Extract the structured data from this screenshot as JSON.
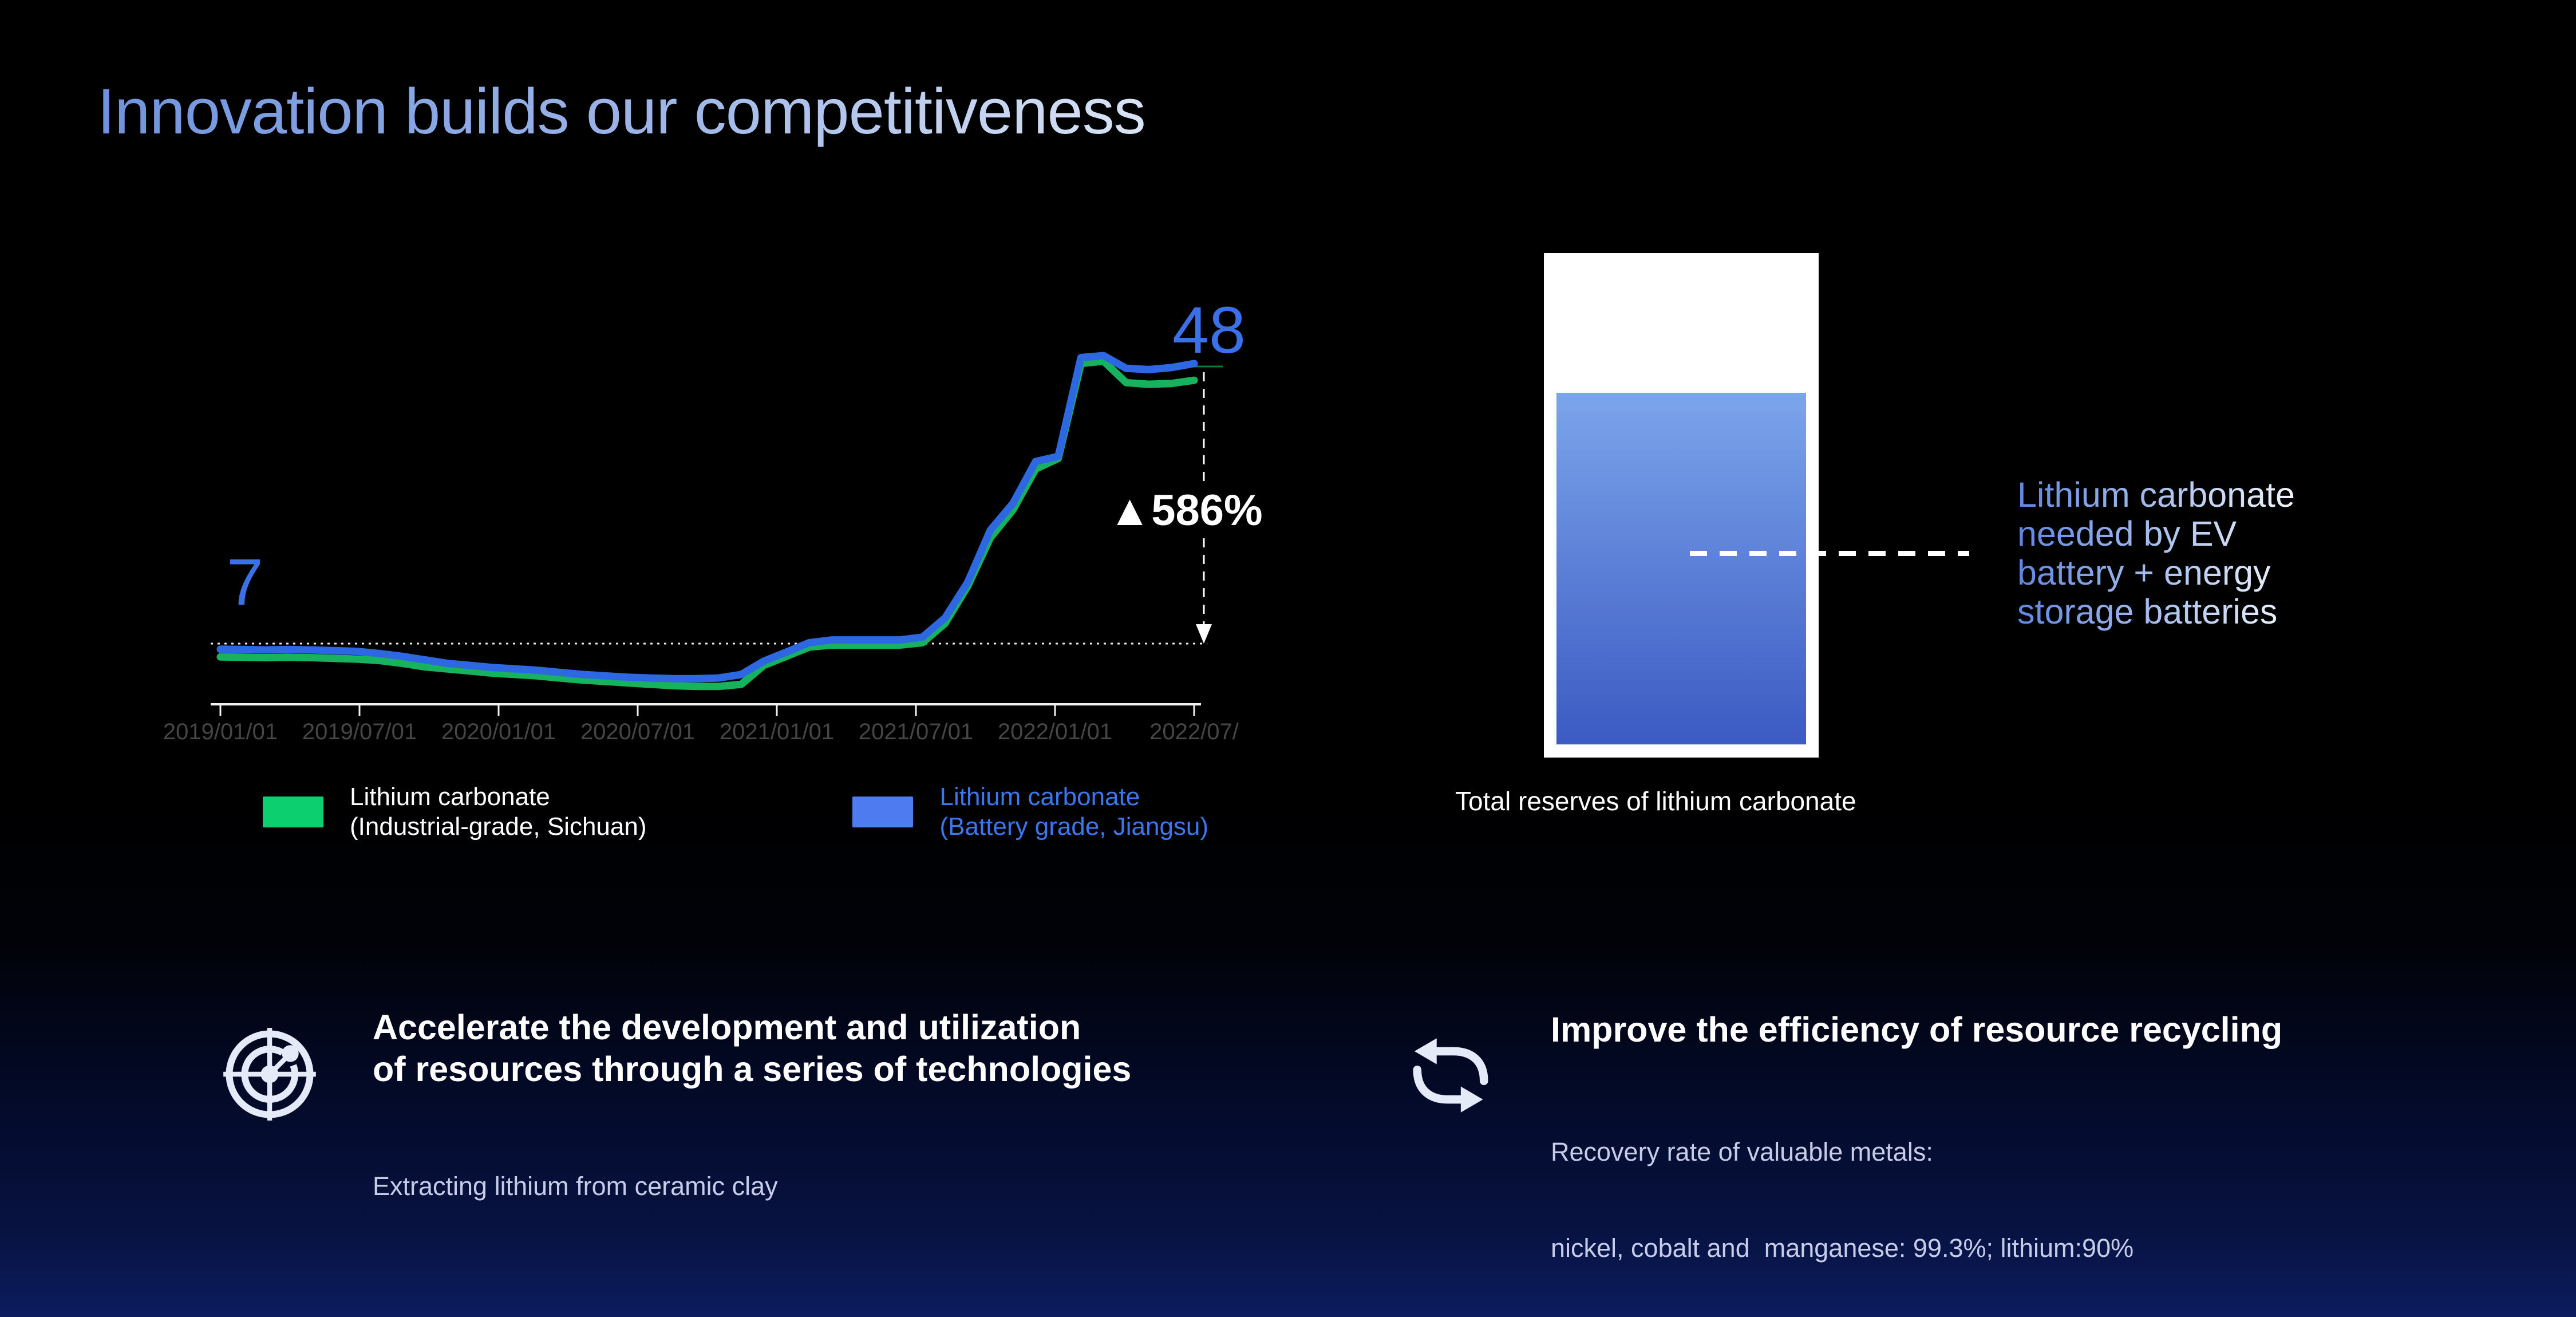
{
  "title": {
    "text": "Innovation builds our competitiveness",
    "gradient_left": "#6E93DE",
    "gradient_right": "#D8E3F5"
  },
  "chart_data": {
    "type": "line",
    "title": "",
    "xlabel": "",
    "ylabel": "",
    "x_tick_labels": [
      "2019/01/01",
      "2019/07/01",
      "2020/01/01",
      "2020/07/01",
      "2021/01/01",
      "2021/07/01",
      "2022/01/01",
      "2022/07/"
    ],
    "baseline_value": 7,
    "series": [
      {
        "id": "industrial",
        "name": "Lithium carbonate (Industrial-grade, Sichuan)",
        "color": "#17B25D",
        "values": [
          6.05,
          6.03,
          6.0,
          6.03,
          6.0,
          5.95,
          5.9,
          5.8,
          5.6,
          5.35,
          5.2,
          5.05,
          4.9,
          4.8,
          4.7,
          4.55,
          4.4,
          4.3,
          4.2,
          4.1,
          4.0,
          3.95,
          3.95,
          4.1,
          5.45,
          6.1,
          6.75,
          6.9,
          6.9,
          6.9,
          6.9,
          7.05,
          8.1,
          10.2,
          14.0,
          16.8,
          21.2,
          23.2,
          48.0,
          48.6,
          43.2,
          42.8,
          43.0,
          43.8
        ]
      },
      {
        "id": "battery",
        "name": "Lithium carbonate (Battery grade, Jiangsu)",
        "color": "#2D68E2",
        "values": [
          6.6,
          6.58,
          6.55,
          6.58,
          6.55,
          6.5,
          6.45,
          6.3,
          6.1,
          5.85,
          5.6,
          5.45,
          5.3,
          5.2,
          5.1,
          4.95,
          4.8,
          4.7,
          4.6,
          4.55,
          4.5,
          4.5,
          4.55,
          4.8,
          5.75,
          6.4,
          7.05,
          7.2,
          7.2,
          7.2,
          7.2,
          7.35,
          8.4,
          10.5,
          14.6,
          17.5,
          22.0,
          24.0,
          49.5,
          50.0,
          46.8,
          46.5,
          47.0,
          48.0
        ]
      }
    ],
    "annotations": {
      "start_value_label": "7",
      "end_value_label": "48",
      "pct_change_label": "▲586%",
      "start_value": 7,
      "end_value": 48
    },
    "axis": {
      "label_color": "#464646",
      "line_color": "#F2F2F2"
    },
    "legend": [
      {
        "swatch_color": "#0CCF70",
        "text_color": "#FFFFFF",
        "lines": [
          "Lithium carbonate",
          "(Industrial-grade, Sichuan)"
        ]
      },
      {
        "swatch_color": "#4E7CF0",
        "text_color": "#3B78F0",
        "lines": [
          "Lithium carbonate",
          "(Battery grade, Jiangsu)"
        ]
      }
    ],
    "layout": {
      "x0": 385,
      "x_step": 39.56,
      "tick_step": 243,
      "tick_len": 20,
      "axis_y": 1230,
      "tick_label_y": 1291,
      "tick_font_size": 40,
      "x_axis_start": 368,
      "x_axis_end": 2098,
      "dotted_y": 1124,
      "dash_x": 2103,
      "dash_top": 650,
      "connector_x1": 2064,
      "connector_x2": 2136,
      "connector_y": 640,
      "connector_color": "#0B7B38",
      "line_width": 13,
      "value_anchors": [
        [
          3.9,
          1200
        ],
        [
          7,
          1124
        ],
        [
          10,
          1028
        ],
        [
          14.6,
          926
        ],
        [
          22,
          806
        ],
        [
          26,
          788
        ],
        [
          50,
          621
        ]
      ]
    }
  },
  "reserve_panel": {
    "caption": "Total reserves of lithium carbonate",
    "note_lines": [
      "Lithium carbonate",
      "needed by EV",
      "battery + energy",
      "storage batteries"
    ],
    "fill_top_color": "#7BA5EB",
    "fill_bottom_color": "#3C5AC3",
    "container_color": "#FFFFFF"
  },
  "initiatives": [
    {
      "icon": "radar",
      "title_lines": [
        "Accelerate the development and utilization",
        "of resources through a series of technologies"
      ],
      "subtitle_lines": [
        "Extracting lithium from ceramic clay"
      ]
    },
    {
      "icon": "cycle",
      "title_lines": [
        "Improve the efficiency of resource recycling"
      ],
      "subtitle_lines": [
        "Recovery rate of valuable metals:",
        "nickel, cobalt and  manganese: 99.3%; lithium:90%"
      ]
    }
  ],
  "background": {
    "gradient_top": "#000000",
    "gradient_bottom": "#0C1C5E"
  }
}
